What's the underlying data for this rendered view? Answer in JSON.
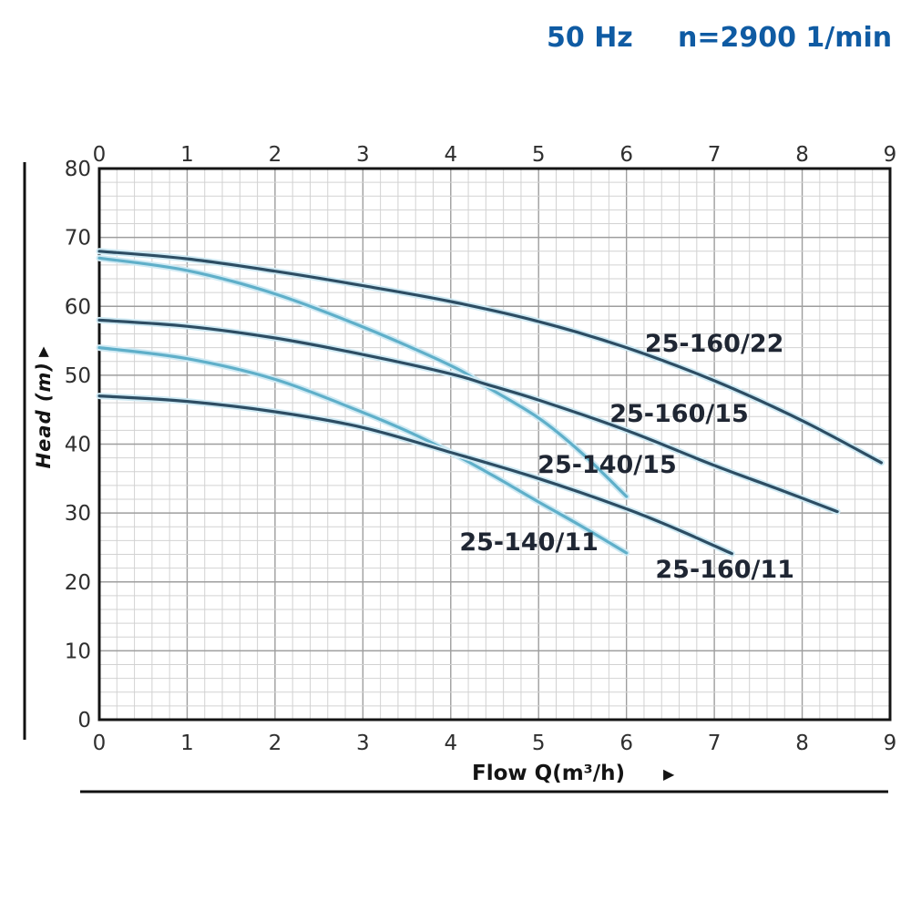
{
  "header": {
    "frequency": "50 Hz",
    "speed": "n=2900 1/min"
  },
  "icons": {
    "up_arrow": "▲",
    "right_arrow": "▶"
  },
  "colors": {
    "title_blue": "#0f5ba3",
    "curve_dark": "#2d4d63",
    "curve_light": "#5fafc9",
    "curve_halo": "#cfeaf4",
    "label_text": "#1f2633",
    "grid_minor": "#d2d2d2",
    "grid_major": "#9e9e9e",
    "border": "#141414",
    "tick_text": "#2f2f2f"
  },
  "chart_data": {
    "type": "line",
    "title": "50 Hz  n=2900 1/min",
    "xlabel": "Flow Q(m³/h)",
    "ylabel": "Head (m)",
    "xlim": [
      0,
      9
    ],
    "ylim": [
      0,
      80
    ],
    "x_ticks": [
      0,
      1,
      2,
      3,
      4,
      5,
      6,
      7,
      8,
      9
    ],
    "y_ticks": [
      0,
      10,
      20,
      30,
      40,
      50,
      60,
      70,
      80
    ],
    "x_minor_step": 0.2,
    "x_major_step": 1,
    "y_minor_step": 2,
    "y_major_step": 10,
    "grid": true,
    "legend_position": "inline-labels",
    "series": [
      {
        "name": "25-160/22",
        "color": "dark",
        "label_at": [
          7.0,
          54.6
        ],
        "points": [
          [
            0,
            68
          ],
          [
            1,
            66.9
          ],
          [
            2,
            65.1
          ],
          [
            3,
            63
          ],
          [
            4,
            60.7
          ],
          [
            5,
            57.8
          ],
          [
            6,
            54
          ],
          [
            7,
            49.2
          ],
          [
            8,
            43.4
          ],
          [
            8.9,
            37.3
          ]
        ]
      },
      {
        "name": "25-140/15",
        "color": "light",
        "label_at": [
          5.78,
          37.0
        ],
        "points": [
          [
            0,
            67
          ],
          [
            1,
            65.2
          ],
          [
            2,
            61.8
          ],
          [
            3,
            57
          ],
          [
            4,
            51.4
          ],
          [
            4.4,
            48.4
          ],
          [
            5,
            43.8
          ],
          [
            5.5,
            38.6
          ],
          [
            6,
            32.4
          ]
        ]
      },
      {
        "name": "25-160/15",
        "color": "dark",
        "label_at": [
          6.6,
          44.4
        ],
        "points": [
          [
            0,
            58
          ],
          [
            1,
            57.1
          ],
          [
            2,
            55.4
          ],
          [
            3,
            53
          ],
          [
            4,
            50.2
          ],
          [
            4.4,
            48.7
          ],
          [
            5,
            46.4
          ],
          [
            6,
            42
          ],
          [
            7,
            36.9
          ],
          [
            7.7,
            33.6
          ],
          [
            8.4,
            30.2
          ]
        ]
      },
      {
        "name": "25-140/11",
        "color": "light",
        "label_at": [
          4.89,
          25.8
        ],
        "points": [
          [
            0,
            54
          ],
          [
            1,
            52.4
          ],
          [
            2,
            49.4
          ],
          [
            3,
            44.6
          ],
          [
            3.5,
            41.9
          ],
          [
            4,
            38.8
          ],
          [
            4.5,
            35.3
          ],
          [
            5,
            31.6
          ],
          [
            5.5,
            28
          ],
          [
            6,
            24.2
          ]
        ]
      },
      {
        "name": "25-160/11",
        "color": "dark",
        "label_at": [
          7.12,
          21.8
        ],
        "points": [
          [
            0,
            47
          ],
          [
            1,
            46.2
          ],
          [
            2,
            44.7
          ],
          [
            3,
            42.4
          ],
          [
            4,
            38.8
          ],
          [
            5,
            35
          ],
          [
            6,
            30.6
          ],
          [
            6.6,
            27.5
          ],
          [
            7.2,
            24.1
          ]
        ]
      }
    ]
  }
}
